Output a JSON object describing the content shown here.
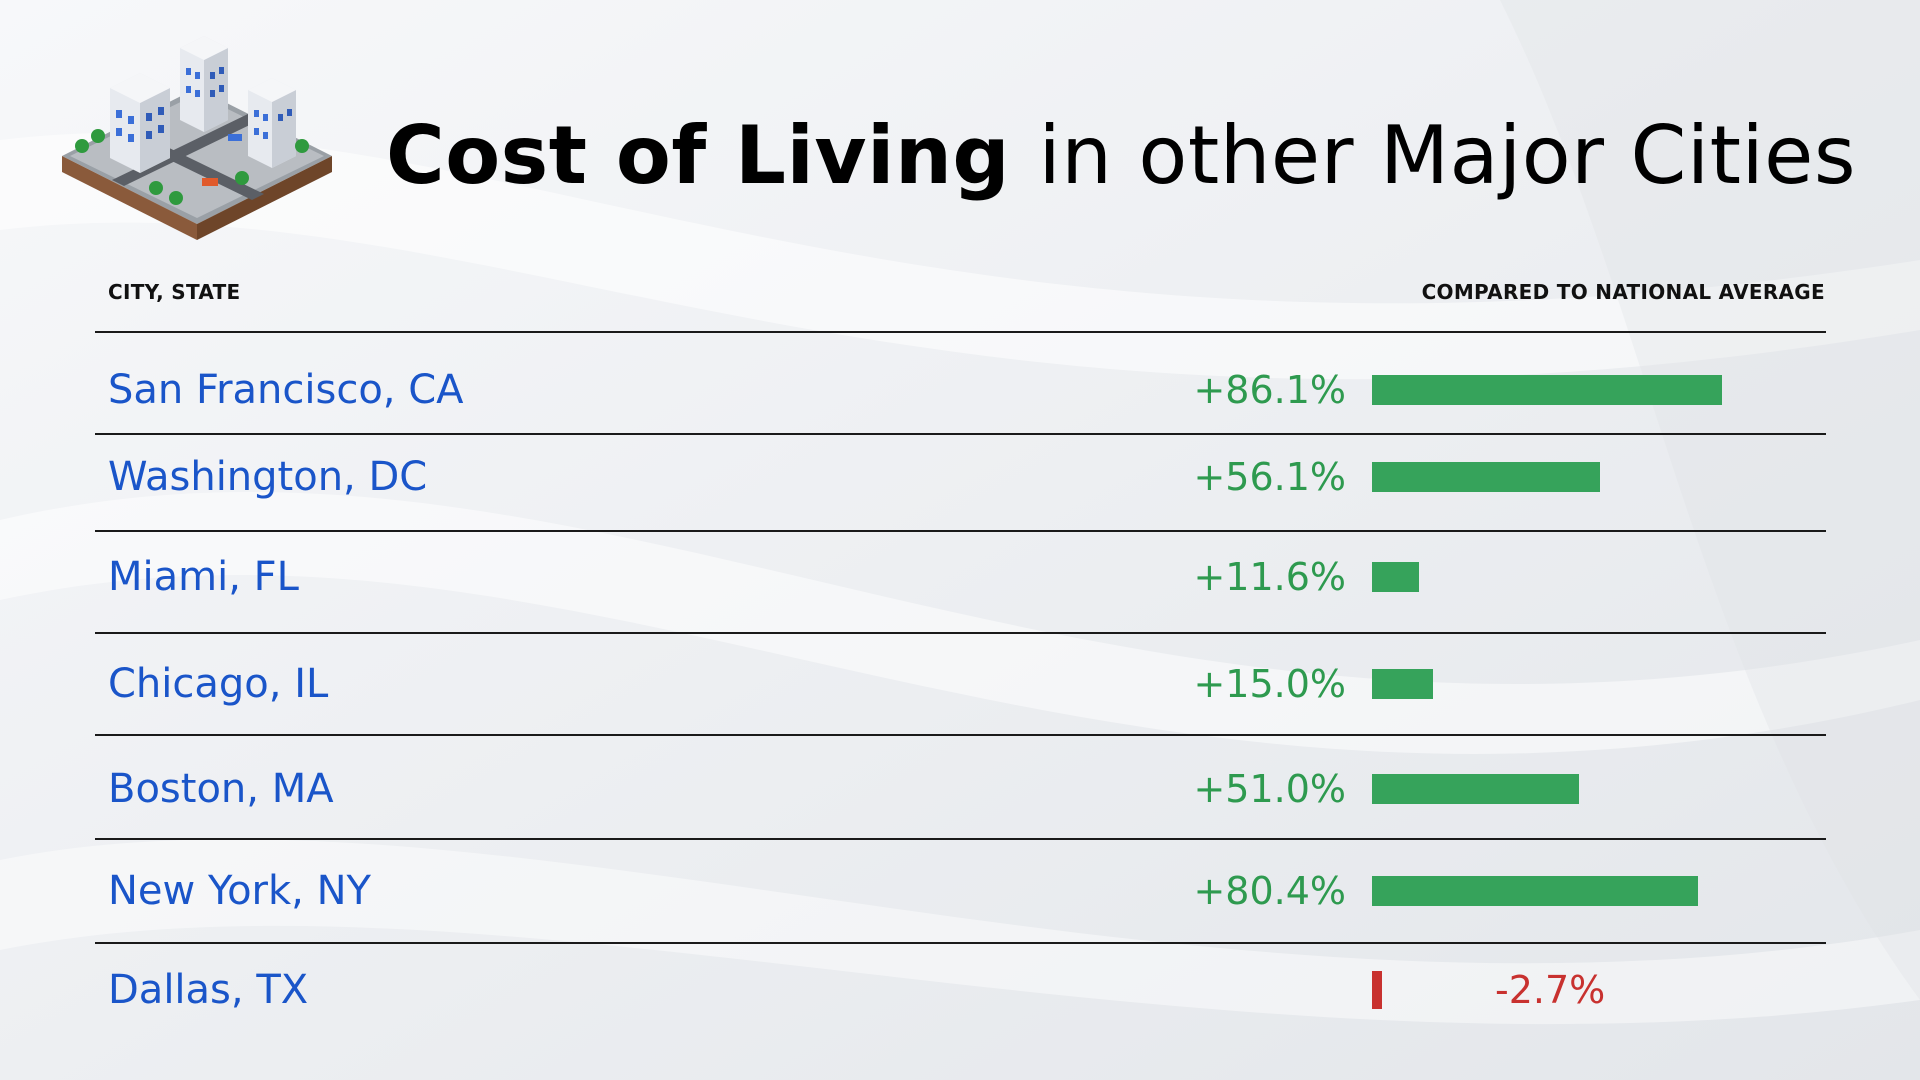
{
  "title": {
    "bold": "Cost of Living",
    "rest": "in other Major Cities"
  },
  "columns": {
    "city": "CITY, STATE",
    "compared": "COMPARED TO NATIONAL AVERAGE"
  },
  "colors": {
    "positive": "#36a35b",
    "positive_text": "#2e9a4f",
    "negative": "#c8312f",
    "city_text": "#1a55c9"
  },
  "logo_icon": "isometric-city-icon",
  "chart_data": {
    "type": "bar",
    "orientation": "horizontal",
    "categories": [
      "San Francisco, CA",
      "Washington, DC",
      "Miami, FL",
      "Chicago, IL",
      "Boston, MA",
      "New York, NY",
      "Dallas, TX"
    ],
    "values": [
      86.1,
      56.1,
      11.6,
      15.0,
      51.0,
      80.4,
      -2.7
    ],
    "labels": [
      "+86.1%",
      "+56.1%",
      "+11.6%",
      "+15.0%",
      "+51.0%",
      "+80.4%",
      "-2.7%"
    ],
    "unit": "%"
  }
}
